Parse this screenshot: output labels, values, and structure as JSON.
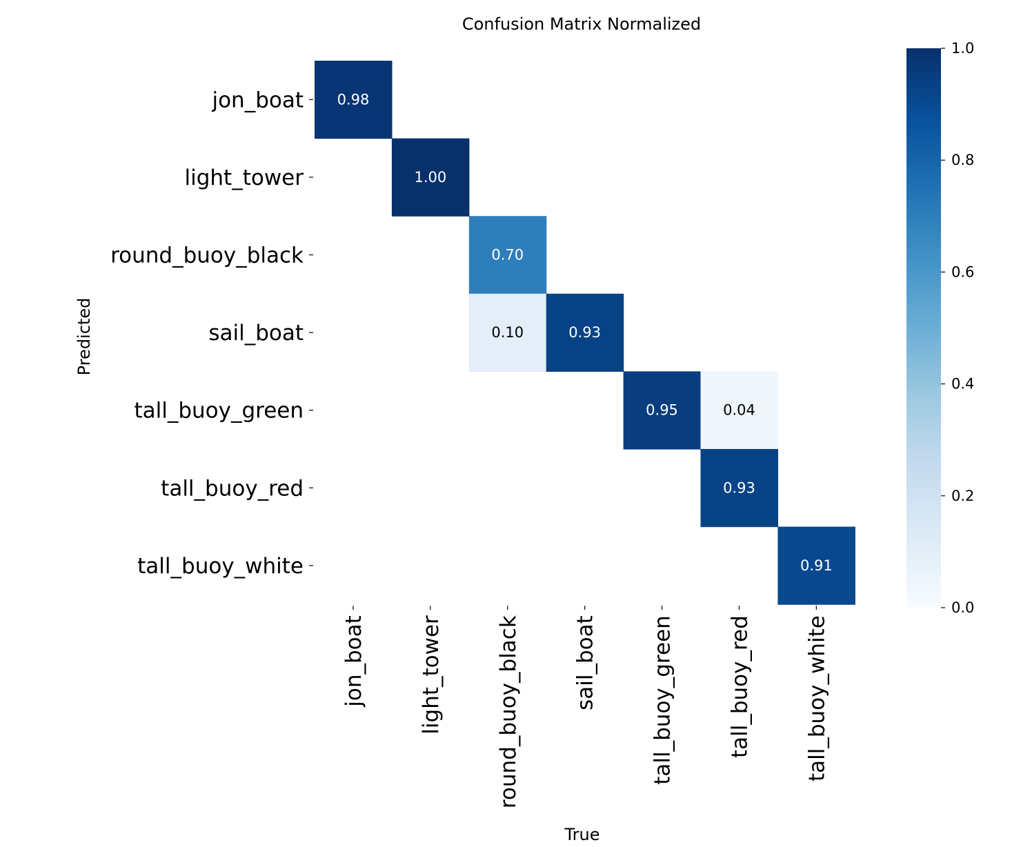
{
  "chart_data": {
    "type": "heatmap",
    "title": "Confusion Matrix Normalized",
    "xlabel": "True",
    "ylabel": "Predicted",
    "x_categories": [
      "jon_boat",
      "light_tower",
      "round_buoy_black",
      "sail_boat",
      "tall_buoy_green",
      "tall_buoy_red",
      "tall_buoy_white"
    ],
    "y_categories": [
      "jon_boat",
      "light_tower",
      "round_buoy_black",
      "sail_boat",
      "tall_buoy_green",
      "tall_buoy_red",
      "tall_buoy_white"
    ],
    "cells": [
      {
        "row": 0,
        "col": 0,
        "value": 0.98,
        "label": "0.98"
      },
      {
        "row": 1,
        "col": 1,
        "value": 1.0,
        "label": "1.00"
      },
      {
        "row": 2,
        "col": 2,
        "value": 0.7,
        "label": "0.70"
      },
      {
        "row": 3,
        "col": 2,
        "value": 0.1,
        "label": "0.10"
      },
      {
        "row": 3,
        "col": 3,
        "value": 0.93,
        "label": "0.93"
      },
      {
        "row": 4,
        "col": 4,
        "value": 0.95,
        "label": "0.95"
      },
      {
        "row": 4,
        "col": 5,
        "value": 0.04,
        "label": "0.04"
      },
      {
        "row": 5,
        "col": 5,
        "value": 0.93,
        "label": "0.93"
      },
      {
        "row": 6,
        "col": 6,
        "value": 0.91,
        "label": "0.91"
      }
    ],
    "colorbar": {
      "range": [
        0.0,
        1.0
      ],
      "ticks": [
        "0.0",
        "0.2",
        "0.4",
        "0.6",
        "0.8",
        "1.0"
      ],
      "colormap": "Blues"
    },
    "grid": false
  }
}
